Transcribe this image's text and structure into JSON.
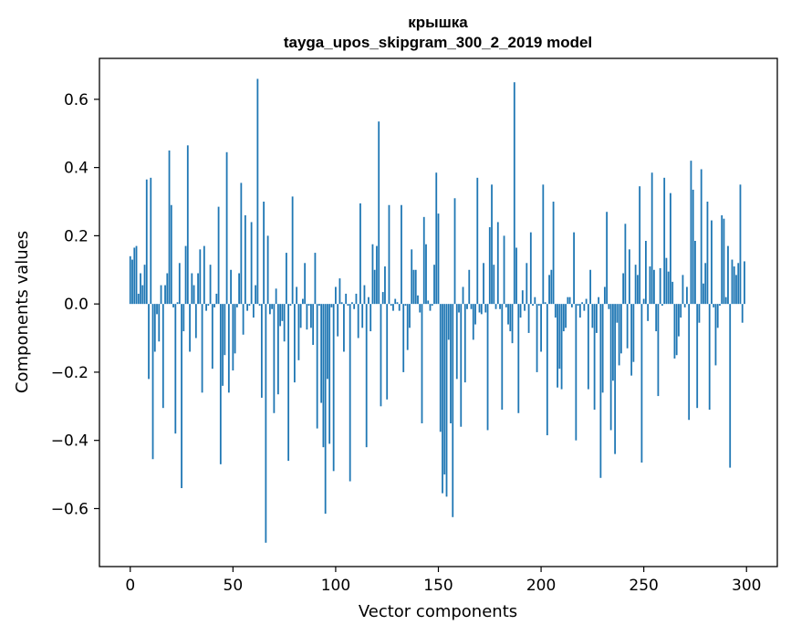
{
  "chart_data": {
    "type": "bar",
    "title": "крышка",
    "subtitle": "tayga_upos_skipgram_300_2_2019 model",
    "xlabel": "Vector components",
    "ylabel": "Components values",
    "xlim": [
      -15,
      315
    ],
    "ylim": [
      -0.77,
      0.72
    ],
    "x_ticks": [
      0,
      50,
      100,
      150,
      200,
      250,
      300
    ],
    "x_tick_labels": [
      "0",
      "50",
      "100",
      "150",
      "200",
      "250",
      "300"
    ],
    "y_ticks": [
      -0.6,
      -0.4,
      -0.2,
      0.0,
      0.2,
      0.4,
      0.6
    ],
    "y_tick_labels": [
      "−0.6",
      "−0.4",
      "−0.2",
      "0.0",
      "0.2",
      "0.4",
      "0.6"
    ],
    "grid": false,
    "bar_color": "#1f77b4",
    "series": [
      {
        "values": [
          0.14,
          0.13,
          0.165,
          0.17,
          0.03,
          0.09,
          0.055,
          0.115,
          0.365,
          -0.22,
          0.37,
          -0.455,
          -0.14,
          -0.03,
          -0.11,
          0.055,
          -0.305,
          0.055,
          0.09,
          0.45,
          0.29,
          -0.01,
          -0.38,
          0.005,
          0.12,
          -0.54,
          -0.08,
          0.17,
          0.465,
          -0.14,
          0.09,
          0.055,
          -0.1,
          0.09,
          0.16,
          -0.26,
          0.17,
          -0.02,
          -0.005,
          0.115,
          -0.19,
          -0.01,
          0.03,
          0.285,
          -0.47,
          -0.24,
          -0.15,
          0.445,
          -0.26,
          0.1,
          -0.195,
          -0.145,
          -0.01,
          0.09,
          0.355,
          -0.09,
          0.26,
          -0.02,
          -0.005,
          0.24,
          -0.04,
          0.055,
          0.66,
          -0.005,
          -0.275,
          0.3,
          -0.7,
          0.2,
          -0.03,
          -0.015,
          -0.32,
          0.045,
          -0.265,
          -0.065,
          -0.05,
          -0.11,
          0.15,
          -0.46,
          -0.005,
          0.315,
          -0.23,
          0.05,
          -0.165,
          -0.07,
          0.015,
          0.12,
          -0.075,
          -0.005,
          -0.07,
          -0.12,
          0.15,
          -0.365,
          -0.005,
          -0.29,
          -0.42,
          -0.615,
          -0.22,
          -0.41,
          -0.01,
          -0.49,
          0.05,
          -0.095,
          0.075,
          0.005,
          -0.14,
          0.03,
          -0.005,
          -0.52,
          0.005,
          -0.015,
          0.03,
          -0.1,
          0.295,
          -0.07,
          0.055,
          -0.42,
          0.02,
          -0.08,
          0.175,
          0.1,
          0.17,
          0.535,
          -0.3,
          0.035,
          0.11,
          -0.28,
          0.29,
          -0.005,
          -0.02,
          0.015,
          0.005,
          -0.02,
          0.29,
          -0.2,
          -0.005,
          -0.135,
          -0.07,
          0.16,
          0.1,
          0.1,
          0.025,
          -0.025,
          -0.35,
          0.255,
          0.175,
          0.01,
          -0.02,
          -0.005,
          0.115,
          0.385,
          0.265,
          -0.375,
          -0.555,
          -0.5,
          -0.565,
          -0.105,
          -0.35,
          -0.625,
          0.31,
          -0.22,
          -0.025,
          -0.36,
          0.05,
          -0.23,
          -0.015,
          0.1,
          -0.015,
          -0.105,
          -0.06,
          0.37,
          -0.025,
          -0.03,
          0.12,
          -0.025,
          -0.37,
          0.225,
          0.35,
          0.115,
          -0.015,
          0.24,
          -0.015,
          -0.31,
          0.2,
          -0.01,
          -0.06,
          -0.08,
          -0.115,
          0.65,
          0.165,
          -0.32,
          -0.04,
          0.04,
          -0.02,
          0.12,
          -0.085,
          0.21,
          -0.005,
          0.02,
          -0.2,
          -0.005,
          -0.14,
          0.35,
          0.005,
          -0.385,
          0.085,
          0.1,
          0.3,
          -0.04,
          -0.245,
          -0.19,
          -0.25,
          -0.08,
          -0.07,
          0.02,
          0.02,
          -0.01,
          0.21,
          -0.4,
          -0.005,
          -0.04,
          0.005,
          -0.02,
          0.015,
          -0.25,
          0.1,
          -0.07,
          -0.31,
          -0.085,
          0.02,
          -0.51,
          -0.26,
          0.05,
          0.27,
          -0.015,
          -0.37,
          -0.225,
          -0.44,
          -0.055,
          -0.18,
          -0.145,
          0.09,
          0.235,
          -0.13,
          0.16,
          -0.21,
          -0.17,
          0.115,
          0.085,
          0.345,
          -0.465,
          0.015,
          0.185,
          -0.05,
          0.11,
          0.385,
          0.1,
          -0.08,
          -0.27,
          0.105,
          -0.005,
          0.37,
          0.135,
          0.095,
          0.325,
          0.065,
          -0.16,
          -0.15,
          -0.095,
          -0.04,
          0.085,
          -0.01,
          0.05,
          -0.34,
          0.42,
          0.335,
          0.185,
          -0.305,
          -0.055,
          0.395,
          0.06,
          0.12,
          0.3,
          -0.31,
          0.245,
          -0.01,
          -0.18,
          -0.07,
          -0.005,
          0.26,
          0.25,
          0.02,
          0.17,
          -0.48,
          0.13,
          0.11,
          0.085,
          0.12,
          0.35,
          -0.055,
          0.125
        ]
      }
    ]
  }
}
